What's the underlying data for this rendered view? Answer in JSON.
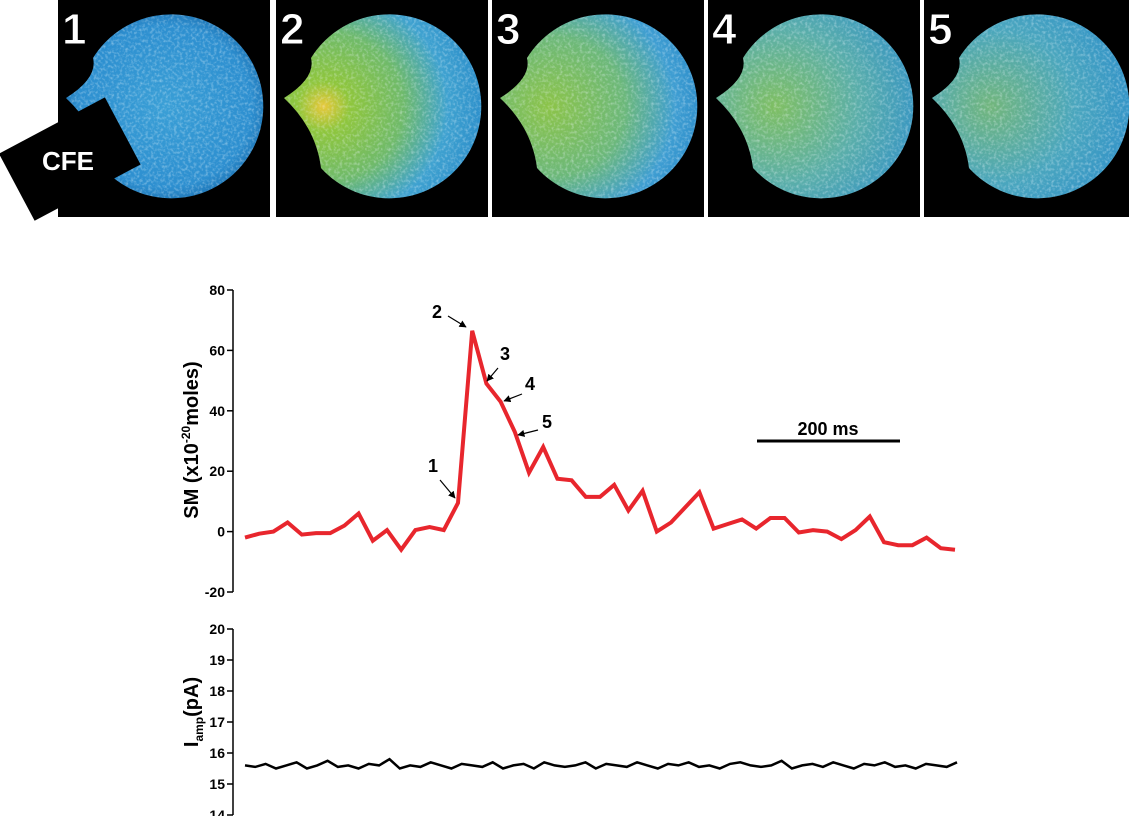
{
  "panels": {
    "labels": [
      "1",
      "2",
      "3",
      "4",
      "5"
    ],
    "electrode_label": "CFE"
  },
  "chart_data": [
    {
      "type": "line",
      "ylabel": {
        "text": "SM (x10",
        "superscript": "-20",
        "rest": "moles)"
      },
      "annotations": [
        "1",
        "2",
        "3",
        "4",
        "5"
      ],
      "scale_bar_label": "200 ms",
      "color": "#e8262d",
      "categories": [
        null,
        null,
        null,
        null,
        null,
        null,
        null,
        null,
        null,
        null,
        null,
        null,
        null,
        null,
        null,
        null,
        null,
        null,
        null,
        null,
        null,
        null,
        null,
        null,
        null,
        null,
        null,
        null,
        null,
        null,
        null,
        null,
        null,
        null,
        null,
        null,
        null,
        null,
        null,
        null,
        null,
        null,
        null,
        null,
        null,
        null,
        null,
        null,
        null,
        null,
        null
      ],
      "values": [
        -2,
        -0.7,
        0,
        3,
        -1,
        -0.5,
        -0.5,
        2,
        6,
        -3,
        0.5,
        -6,
        0.5,
        1.5,
        0.5,
        9.5,
        66.5,
        49,
        43,
        33,
        19.5,
        28,
        17.5,
        17,
        11.5,
        11.5,
        15.5,
        7,
        13.5,
        0,
        3,
        8,
        13,
        1,
        2.5,
        4,
        1,
        4.5,
        4.5,
        -0.3,
        0.5,
        0,
        -2.5,
        0.5,
        5,
        -3.5,
        -4.5,
        -4.5,
        -2,
        -5.5,
        -6
      ],
      "ylim": [
        -20,
        80
      ],
      "yticks": [
        -20,
        0,
        20,
        40,
        60,
        80
      ]
    },
    {
      "type": "line",
      "ylabel": {
        "text": "I",
        "subscript": "amp",
        "rest": "(pA)"
      },
      "color": "#000000",
      "categories": [
        null,
        null,
        null,
        null,
        null,
        null,
        null,
        null,
        null,
        null,
        null,
        null,
        null,
        null,
        null,
        null,
        null,
        null,
        null,
        null,
        null,
        null,
        null,
        null,
        null,
        null,
        null,
        null,
        null,
        null,
        null,
        null,
        null,
        null,
        null,
        null,
        null,
        null,
        null,
        null,
        null,
        null,
        null,
        null,
        null,
        null,
        null,
        null,
        null,
        null,
        null,
        null,
        null,
        null,
        null,
        null,
        null,
        null,
        null,
        null,
        null,
        null,
        null,
        null,
        null,
        null,
        null,
        null,
        null,
        null
      ],
      "values": [
        15.6,
        15.55,
        15.65,
        15.5,
        15.6,
        15.7,
        15.5,
        15.6,
        15.75,
        15.55,
        15.6,
        15.5,
        15.65,
        15.6,
        15.8,
        15.5,
        15.6,
        15.55,
        15.7,
        15.6,
        15.5,
        15.65,
        15.6,
        15.55,
        15.7,
        15.5,
        15.6,
        15.65,
        15.5,
        15.7,
        15.6,
        15.55,
        15.6,
        15.7,
        15.5,
        15.65,
        15.6,
        15.55,
        15.7,
        15.6,
        15.5,
        15.65,
        15.6,
        15.7,
        15.55,
        15.6,
        15.5,
        15.65,
        15.7,
        15.6,
        15.55,
        15.6,
        15.75,
        15.5,
        15.6,
        15.65,
        15.55,
        15.7,
        15.6,
        15.5,
        15.65,
        15.6,
        15.7,
        15.55,
        15.6,
        15.5,
        15.65,
        15.6,
        15.55,
        15.7
      ],
      "ylim": [
        14,
        20
      ],
      "yticks": [
        14,
        15,
        16,
        17,
        18,
        19,
        20
      ]
    }
  ]
}
